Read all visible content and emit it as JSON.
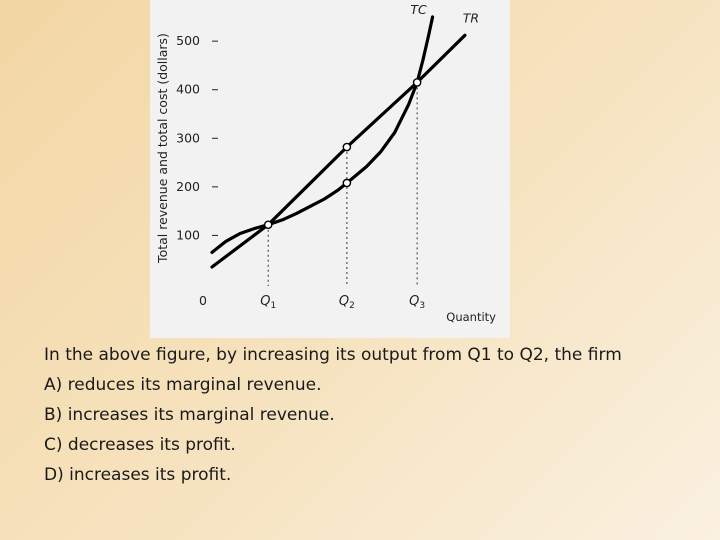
{
  "chart_data": {
    "type": "line",
    "title": "",
    "xlabel": "Quantity",
    "ylabel": "Total revenue and total cost (dollars)",
    "xlim": [
      0,
      100
    ],
    "ylim": [
      0,
      560
    ],
    "yticks": [
      100,
      200,
      300,
      400,
      500
    ],
    "origin_label": "0",
    "q_markers": [
      {
        "name": "Q",
        "sub": "1",
        "x": 20
      },
      {
        "name": "Q",
        "sub": "2",
        "x": 48
      },
      {
        "name": "Q",
        "sub": "3",
        "x": 73
      }
    ],
    "series": [
      {
        "name": "TC",
        "points": [
          [
            0,
            65
          ],
          [
            5,
            88
          ],
          [
            10,
            104
          ],
          [
            15,
            114
          ],
          [
            20,
            122
          ],
          [
            25,
            132
          ],
          [
            30,
            145
          ],
          [
            35,
            160
          ],
          [
            40,
            175
          ],
          [
            45,
            194
          ],
          [
            48,
            208
          ],
          [
            55,
            242
          ],
          [
            60,
            272
          ],
          [
            65,
            312
          ],
          [
            70,
            370
          ],
          [
            73,
            415
          ],
          [
            75,
            460
          ],
          [
            77,
            510
          ],
          [
            78.5,
            550
          ]
        ]
      },
      {
        "name": "TR",
        "points": [
          [
            0,
            35
          ],
          [
            20,
            122
          ],
          [
            48,
            282
          ],
          [
            73,
            415
          ],
          [
            90,
            512
          ]
        ]
      }
    ],
    "points": [
      {
        "x": 20,
        "y": 122
      },
      {
        "x": 48,
        "y": 282
      },
      {
        "x": 48,
        "y": 208
      },
      {
        "x": 73,
        "y": 415
      }
    ]
  },
  "question": {
    "stem": "In the above figure, by increasing its output from Q1 to Q2, the firm",
    "options": [
      "A) reduces its marginal revenue.",
      "B) increases its marginal revenue.",
      "C) decreases its profit.",
      "D) increases its profit."
    ]
  }
}
